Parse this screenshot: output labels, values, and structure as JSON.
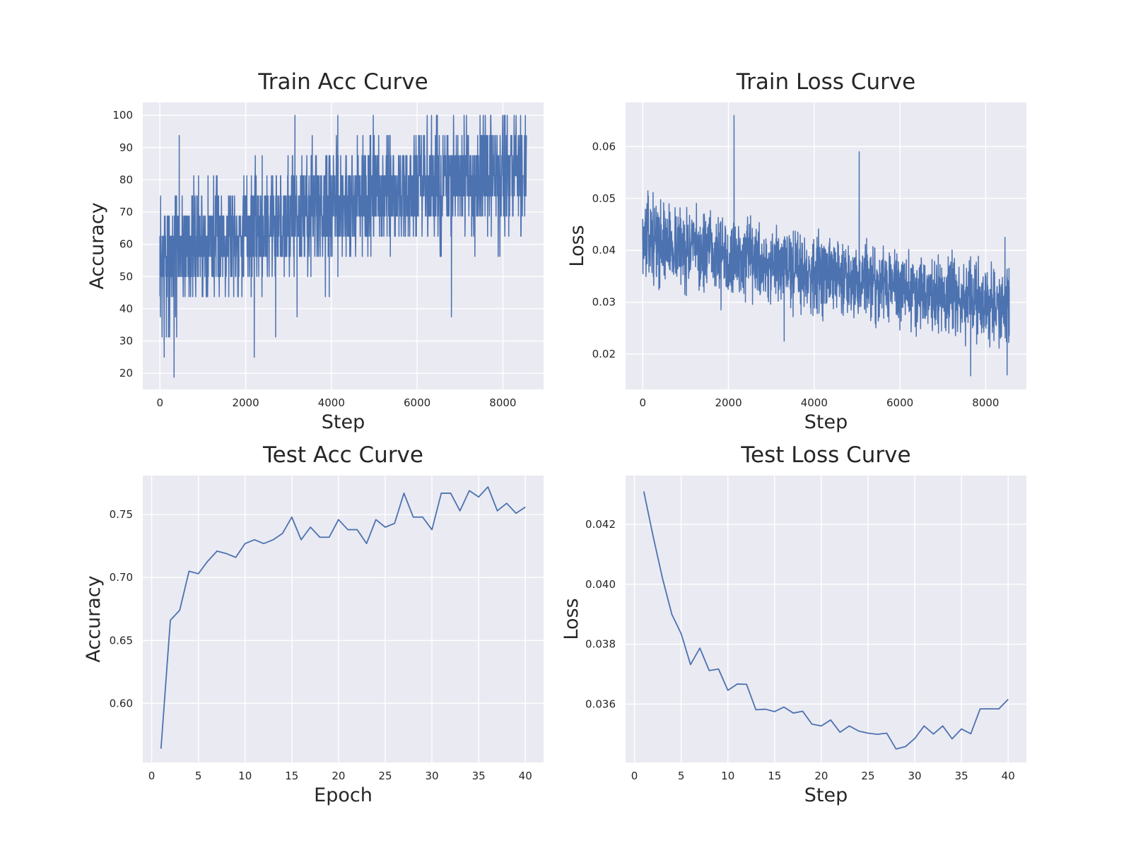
{
  "chart_data": [
    {
      "type": "line",
      "title": "Train Acc Curve",
      "xlabel": "Step",
      "ylabel": "Accuracy",
      "xlim": [
        -400,
        8950
      ],
      "ylim": [
        15,
        104
      ],
      "xticks": [
        0,
        2000,
        4000,
        6000,
        8000
      ],
      "yticks": [
        20,
        30,
        40,
        50,
        60,
        70,
        80,
        90,
        100
      ],
      "grid": true,
      "color": "#4c72b0",
      "noise": {
        "x_start": 0,
        "x_end": 8550,
        "n_points": 1700,
        "trend": [
          [
            0,
            55
          ],
          [
            600,
            60
          ],
          [
            2000,
            64
          ],
          [
            4000,
            72
          ],
          [
            6000,
            77
          ],
          [
            8550,
            82
          ]
        ],
        "spread": 13,
        "min": 19,
        "max": 100,
        "quantum": 6.25,
        "seed": 7
      },
      "series": [
        {
          "x": [
            0,
            50,
            100,
            120,
            150,
            200,
            330,
            390,
            450,
            2200,
            2700,
            3150,
            3200,
            3950,
            4150,
            6800
          ],
          "y": [
            44,
            31.25,
            25,
            56,
            31.25,
            31.25,
            18.75,
            31.25,
            93.75,
            25,
            31.25,
            100,
            37.5,
            43.75,
            100,
            37.5
          ]
        }
      ]
    },
    {
      "type": "line",
      "title": "Train Loss Curve",
      "xlabel": "Step",
      "ylabel": "Loss",
      "xlim": [
        -400,
        8950
      ],
      "ylim": [
        0.0132,
        0.0685
      ],
      "xticks": [
        0,
        2000,
        4000,
        6000,
        8000
      ],
      "yticks": [
        0.02,
        0.03,
        0.04,
        0.05,
        0.06
      ],
      "grid": true,
      "color": "#4c72b0",
      "noise": {
        "x_start": 0,
        "x_end": 8550,
        "n_points": 1700,
        "trend": [
          [
            0,
            0.0425
          ],
          [
            1000,
            0.0405
          ],
          [
            3000,
            0.037
          ],
          [
            5000,
            0.0345
          ],
          [
            7000,
            0.031
          ],
          [
            8550,
            0.029
          ]
        ],
        "spread": 0.0052,
        "min": 0.0158,
        "max": 0.066,
        "quantum": 0,
        "seed": 13
      },
      "series": [
        {
          "x": [
            0,
            100,
            130,
            2130,
            2150,
            3300,
            5050,
            5070,
            7650,
            8450,
            8500,
            8550
          ],
          "y": [
            0.046,
            0.049,
            0.0505,
            0.066,
            0.0395,
            0.0225,
            0.059,
            0.031,
            0.0158,
            0.0425,
            0.016,
            0.033
          ]
        }
      ]
    },
    {
      "type": "line",
      "title": "Test Acc Curve",
      "xlabel": "Epoch",
      "ylabel": "Accuracy",
      "xlim": [
        -0.95,
        41.95
      ],
      "ylim": [
        0.553,
        0.781
      ],
      "xticks": [
        0,
        5,
        10,
        15,
        20,
        25,
        30,
        35,
        40
      ],
      "yticks": [
        0.6,
        0.65,
        0.7,
        0.75
      ],
      "grid": true,
      "color": "#4c72b0",
      "series": [
        {
          "x": [
            1,
            2,
            3,
            4,
            5,
            6,
            7,
            8,
            9,
            10,
            11,
            12,
            13,
            14,
            15,
            16,
            17,
            18,
            19,
            20,
            21,
            22,
            23,
            24,
            25,
            26,
            27,
            28,
            29,
            30,
            31,
            32,
            33,
            34,
            35,
            36,
            37,
            38,
            39,
            40
          ],
          "y": [
            0.564,
            0.666,
            0.674,
            0.705,
            0.703,
            0.713,
            0.721,
            0.719,
            0.716,
            0.727,
            0.73,
            0.727,
            0.73,
            0.735,
            0.748,
            0.73,
            0.74,
            0.732,
            0.732,
            0.746,
            0.738,
            0.738,
            0.727,
            0.746,
            0.74,
            0.743,
            0.767,
            0.748,
            0.748,
            0.738,
            0.767,
            0.767,
            0.753,
            0.769,
            0.764,
            0.772,
            0.753,
            0.759,
            0.751,
            0.756
          ]
        }
      ]
    },
    {
      "type": "line",
      "title": "Test Loss Curve",
      "xlabel": "Step",
      "ylabel": "Loss",
      "xlim": [
        -0.95,
        41.95
      ],
      "ylim": [
        0.03405,
        0.04363
      ],
      "xticks": [
        0,
        5,
        10,
        15,
        20,
        25,
        30,
        35,
        40
      ],
      "yticks": [
        0.036,
        0.038,
        0.04,
        0.042
      ],
      "grid": true,
      "color": "#4c72b0",
      "series": [
        {
          "x": [
            1,
            2,
            3,
            4,
            5,
            6,
            7,
            8,
            9,
            10,
            11,
            12,
            13,
            14,
            15,
            16,
            17,
            18,
            19,
            20,
            21,
            22,
            23,
            24,
            25,
            26,
            27,
            28,
            29,
            30,
            31,
            32,
            33,
            34,
            35,
            36,
            37,
            38,
            39,
            40
          ],
          "y": [
            0.0431,
            0.0416,
            0.0402,
            0.039,
            0.03835,
            0.03732,
            0.03787,
            0.03712,
            0.03717,
            0.03646,
            0.03667,
            0.03666,
            0.03581,
            0.03583,
            0.03575,
            0.0359,
            0.0357,
            0.03576,
            0.03533,
            0.03527,
            0.03547,
            0.03506,
            0.03527,
            0.0351,
            0.03503,
            0.03499,
            0.03503,
            0.0345,
            0.03458,
            0.03485,
            0.03527,
            0.035,
            0.03527,
            0.03484,
            0.03517,
            0.03501,
            0.03584,
            0.03584,
            0.03584,
            0.03616
          ]
        }
      ]
    }
  ]
}
